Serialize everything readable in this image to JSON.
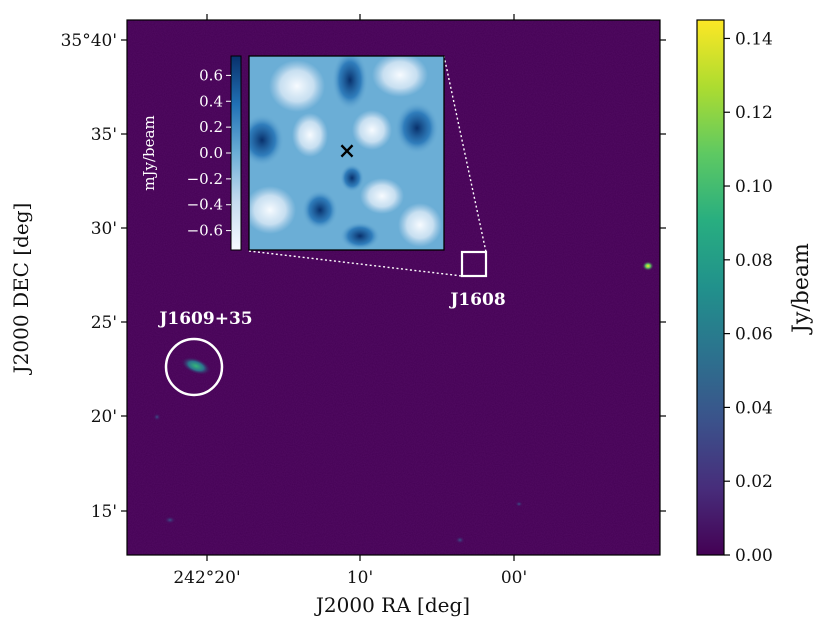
{
  "chart_data": {
    "type": "heatmap",
    "title": "",
    "xlabel": "J2000 RA [deg]",
    "ylabel": "J2000 DEC [deg]",
    "x_ticks": [
      "242°20'",
      "10'",
      "00'"
    ],
    "y_ticks": [
      "35°40'",
      "35'",
      "30'",
      "25'",
      "20'",
      "15'"
    ],
    "colorbar": {
      "label": "Jy/beam",
      "range": [
        0.0,
        0.145
      ],
      "ticks": [
        "0.00",
        "0.02",
        "0.04",
        "0.06",
        "0.08",
        "0.10",
        "0.12",
        "0.14"
      ],
      "tick_values": [
        0.0,
        0.02,
        0.04,
        0.06,
        0.08,
        0.1,
        0.12,
        0.14
      ],
      "colormap": "viridis",
      "stops": [
        "#440154",
        "#472d7b",
        "#3b528b",
        "#2c728e",
        "#21918c",
        "#28ae80",
        "#5ec962",
        "#addc30",
        "#fde725"
      ]
    },
    "annotations": [
      {
        "label": "J1609+35",
        "marker": "circle",
        "color": "#ffffff"
      },
      {
        "label": "J1608",
        "marker": "square",
        "color": "#ffffff"
      }
    ],
    "inset": {
      "colorbar_label": "mJy/beam",
      "range": [
        -0.75,
        0.75
      ],
      "ticks": [
        "0.6",
        "0.4",
        "0.2",
        "0.0",
        "−0.2",
        "−0.4",
        "−0.6"
      ],
      "tick_values": [
        0.6,
        0.4,
        0.2,
        0.0,
        -0.2,
        -0.4,
        -0.6
      ],
      "colormap": "Blues",
      "marker": "×",
      "stops": [
        "#f7fbff",
        "#c6dbef",
        "#6baed6",
        "#2171b5",
        "#08306b"
      ]
    }
  },
  "colors": {
    "background": "#440154",
    "annotation": "#ffffff"
  }
}
